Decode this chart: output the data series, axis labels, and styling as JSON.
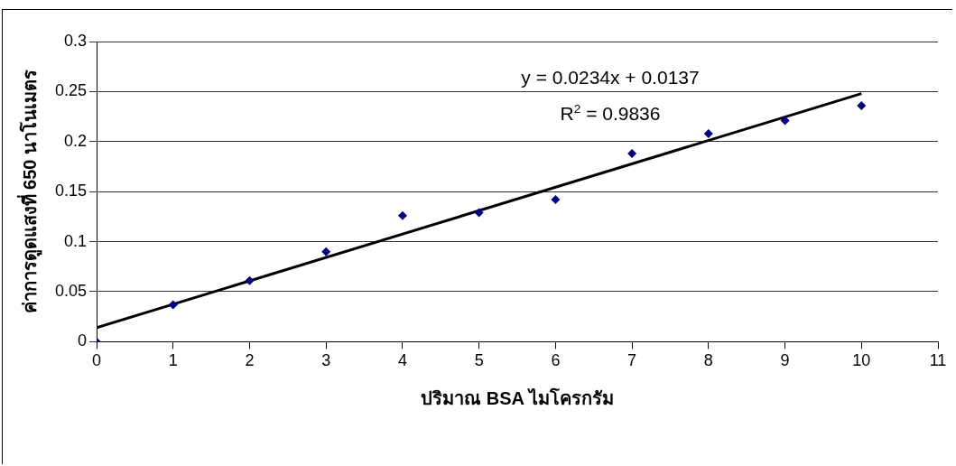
{
  "chart_data": {
    "type": "scatter",
    "xlabel": "ปริมาณ BSA ไมโครกรัม",
    "ylabel": "ค่าการดูดแสงที่ 650 นาโนเมตร",
    "x": [
      0,
      1,
      2,
      3,
      4,
      5,
      6,
      7,
      8,
      9,
      10
    ],
    "series": [
      {
        "color": "#000080",
        "values": [
          0,
          0.037,
          0.061,
          0.09,
          0.126,
          0.129,
          0.142,
          0.188,
          0.208,
          0.221,
          0.236
        ],
        "marker": "diamond"
      },
      {
        "type": "line",
        "color": "#000000",
        "x": [
          0,
          10
        ],
        "values": [
          0.014,
          0.248
        ],
        "marker": "none"
      }
    ],
    "annotations": [
      "y = 0.0234x + 0.0137",
      "R$^{2}$ = 0.9836"
    ],
    "xlim": [
      0,
      11
    ],
    "xticks": [
      0,
      1,
      2,
      3,
      4,
      5,
      6,
      7,
      8,
      9,
      10,
      11
    ],
    "ylim": [
      0,
      0.3
    ],
    "yticks": [
      0,
      0.05,
      0.1,
      0.15,
      0.2,
      0.25,
      0.3
    ],
    "grid": "y",
    "legend": false
  }
}
